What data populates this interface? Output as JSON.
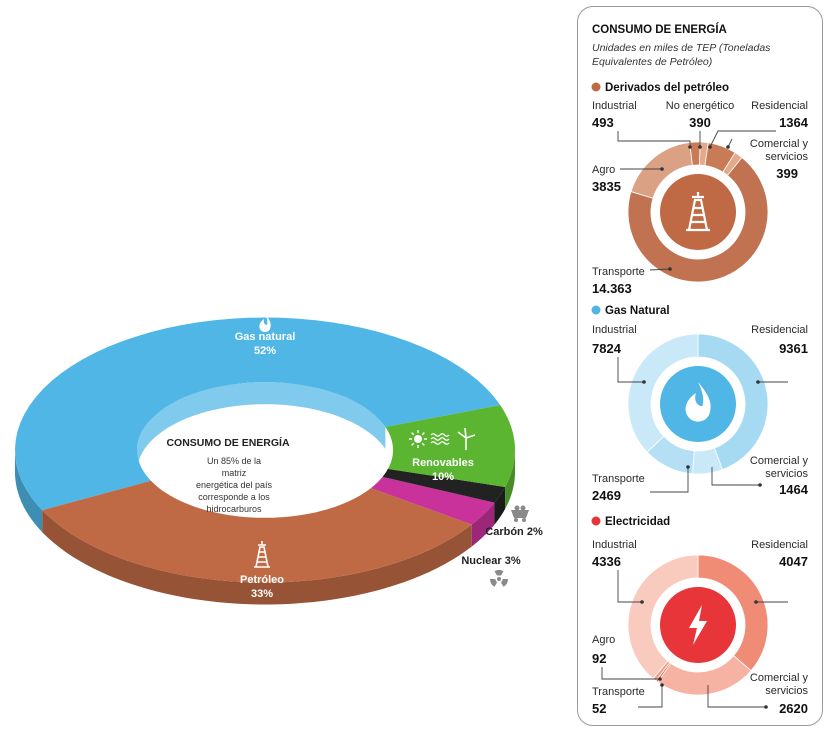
{
  "colors": {
    "gas": "#4fb6e6",
    "petroleo": "#c06a45",
    "renovables": "#5cb531",
    "carbon": "#222222",
    "nuclear": "#c8329a",
    "electricidad": "#e8353a"
  },
  "icons": [
    "flame-icon",
    "oil-derrick-icon",
    "sun-icon",
    "wave-icon",
    "wind-turbine-icon",
    "coal-cart-icon",
    "radiation-icon",
    "lightning-icon"
  ],
  "chart_data": [
    {
      "type": "pie",
      "title": "CONSUMO DE ENERGÍA",
      "subtitle": "Un 85% de la matriz energética del país corresponde a los hidrocarburos",
      "categories": [
        "Gas natural",
        "Petróleo",
        "Nuclear",
        "Carbón",
        "Renovables"
      ],
      "values": [
        52,
        33,
        3,
        2,
        10
      ],
      "labels": [
        "52%",
        "33%",
        "3%",
        "2%",
        "10%"
      ]
    },
    {
      "type": "pie",
      "title": "Derivados del petróleo",
      "categories": [
        "No energético",
        "Residencial",
        "Comercial y servicios",
        "Transporte",
        "Agro",
        "Industrial"
      ],
      "values": [
        390,
        1364,
        399,
        14363,
        3835,
        493
      ],
      "labels": [
        "390",
        "1364",
        "399",
        "14.363",
        "3835",
        "493"
      ]
    },
    {
      "type": "pie",
      "title": "Gas Natural",
      "categories": [
        "Residencial",
        "Comercial y servicios",
        "Transporte",
        "Industrial"
      ],
      "values": [
        9361,
        1464,
        2469,
        7824
      ],
      "labels": [
        "9361",
        "1464",
        "2469",
        "7824"
      ]
    },
    {
      "type": "pie",
      "title": "Electricidad",
      "categories": [
        "Residencial",
        "Comercial y servicios",
        "Transporte",
        "Agro",
        "Industrial"
      ],
      "values": [
        4047,
        2620,
        52,
        92,
        4336
      ],
      "labels": [
        "4047",
        "2620",
        "52",
        "92",
        "4336"
      ]
    }
  ],
  "panel": {
    "title": "CONSUMO DE ENERGÍA",
    "subtitle_line1": "Unidades en miles de TEP (Toneladas",
    "subtitle_line2": "Equivalentes de Petróleo)",
    "comercial_line1": "Comercial y",
    "comercial_line2": "servicios"
  },
  "main": {
    "center_title": "CONSUMO DE ENERGÍA",
    "center_text": [
      "Un 85% de la",
      "matriz",
      "energética del país",
      "corresponde a los",
      "hidrocarburos"
    ]
  }
}
